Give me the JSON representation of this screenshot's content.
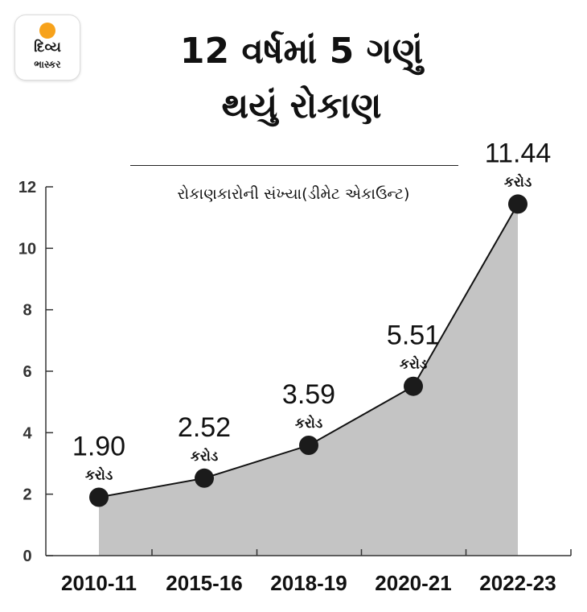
{
  "brand": {
    "logo_line1": "દિવ્ય",
    "logo_line2": "ભાસ્કર",
    "sun_color": "#f7a21b"
  },
  "chart_data": {
    "type": "area",
    "title": [
      "12 વર્ષમાં 5 ગણું",
      "થયું રોકાણ"
    ],
    "subtitle": "રોકાણકારોની સંખ્યા(ડીમેટ એકાઉન્ટ)",
    "categories": [
      "2010-11",
      "2015-16",
      "2018-19",
      "2020-21",
      "2022-23"
    ],
    "values": [
      1.9,
      2.52,
      3.59,
      5.51,
      11.44
    ],
    "value_labels": [
      "1.90",
      "2.52",
      "3.59",
      "5.51",
      "11.44"
    ],
    "unit_label": "કરોડ",
    "y_ticks": [
      "0",
      "2",
      "4",
      "6",
      "8",
      "10",
      "12"
    ],
    "ylim": [
      0,
      12
    ],
    "grid": false,
    "fill_color": "#c4c4c4",
    "line_color": "#111111",
    "marker_color": "#1b1b1b"
  }
}
